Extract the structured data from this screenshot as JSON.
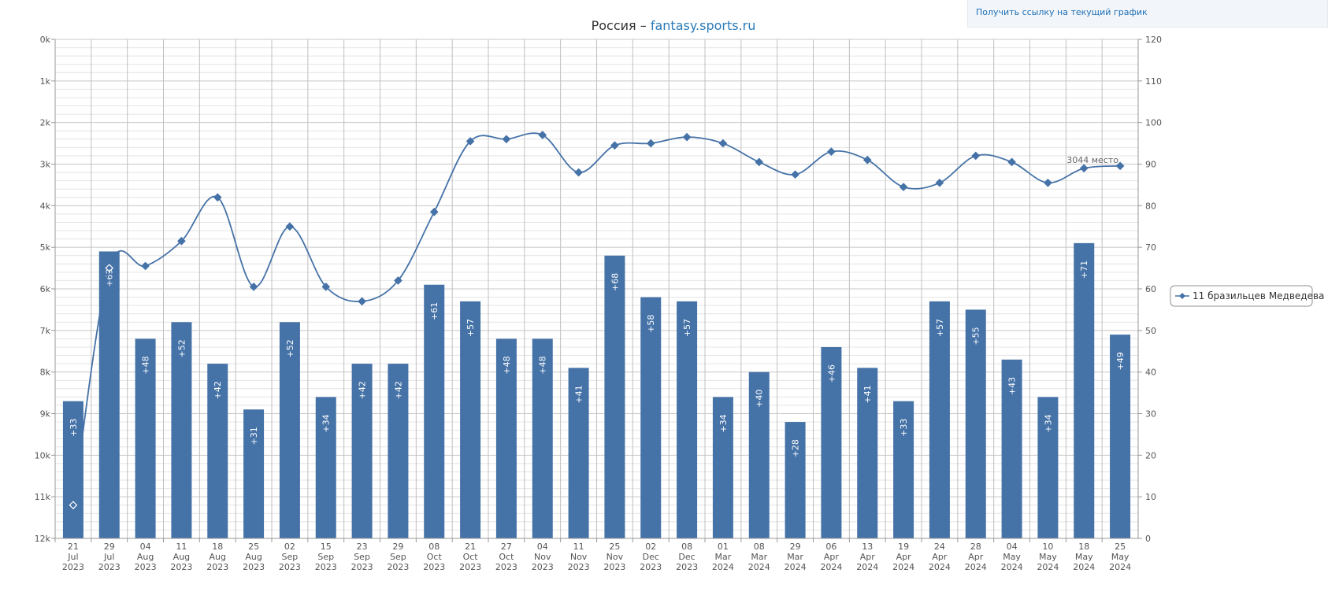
{
  "header": {
    "title_prefix": "Россия – ",
    "title_site": "fantasy.sports.ru",
    "link_text": "Получить ссылку на текущий график"
  },
  "colors": {
    "bar": "#4572a7",
    "line": "#4572a7",
    "title_link": "#2a7ab8"
  },
  "chart_data": {
    "type": "bar+line",
    "title": "Россия – fantasy.sports.ru",
    "categories": [
      [
        "21",
        "Jul",
        "2023"
      ],
      [
        "29",
        "Jul",
        "2023"
      ],
      [
        "04",
        "Aug",
        "2023"
      ],
      [
        "11",
        "Aug",
        "2023"
      ],
      [
        "18",
        "Aug",
        "2023"
      ],
      [
        "25",
        "Aug",
        "2023"
      ],
      [
        "02",
        "Sep",
        "2023"
      ],
      [
        "15",
        "Sep",
        "2023"
      ],
      [
        "23",
        "Sep",
        "2023"
      ],
      [
        "29",
        "Sep",
        "2023"
      ],
      [
        "08",
        "Oct",
        "2023"
      ],
      [
        "21",
        "Oct",
        "2023"
      ],
      [
        "27",
        "Oct",
        "2023"
      ],
      [
        "04",
        "Nov",
        "2023"
      ],
      [
        "11",
        "Nov",
        "2023"
      ],
      [
        "25",
        "Nov",
        "2023"
      ],
      [
        "02",
        "Dec",
        "2023"
      ],
      [
        "08",
        "Dec",
        "2023"
      ],
      [
        "01",
        "Mar",
        "2024"
      ],
      [
        "08",
        "Mar",
        "2024"
      ],
      [
        "29",
        "Mar",
        "2024"
      ],
      [
        "06",
        "Apr",
        "2024"
      ],
      [
        "13",
        "Apr",
        "2024"
      ],
      [
        "19",
        "Apr",
        "2024"
      ],
      [
        "24",
        "Apr",
        "2024"
      ],
      [
        "28",
        "Apr",
        "2024"
      ],
      [
        "04",
        "May",
        "2024"
      ],
      [
        "10",
        "May",
        "2024"
      ],
      [
        "18",
        "May",
        "2024"
      ],
      [
        "25",
        "May",
        "2024"
      ]
    ],
    "bars": {
      "values": [
        33,
        69,
        48,
        52,
        42,
        31,
        52,
        34,
        42,
        42,
        61,
        57,
        48,
        48,
        41,
        68,
        58,
        57,
        34,
        40,
        28,
        46,
        41,
        33,
        57,
        55,
        43,
        34,
        71,
        49
      ],
      "labels": [
        "+33",
        "+69",
        "+48",
        "+52",
        "+42",
        "+31",
        "+52",
        "+34",
        "+42",
        "+42",
        "+61",
        "+57",
        "+48",
        "+48",
        "+41",
        "+68",
        "+58",
        "+57",
        "+34",
        "+40",
        "+28",
        "+46",
        "+41",
        "+33",
        "+57",
        "+55",
        "+43",
        "+34",
        "+71",
        "+49"
      ],
      "axis": {
        "side": "right",
        "min": 0,
        "max": 120,
        "ticks": [
          "0",
          "10",
          "20",
          "30",
          "40",
          "50",
          "60",
          "70",
          "80",
          "90",
          "100",
          "110",
          "120"
        ]
      }
    },
    "line": {
      "name": "11 бразильцев Медведева",
      "values": [
        11200,
        5500,
        5450,
        4850,
        3800,
        5950,
        4500,
        5950,
        6300,
        5800,
        4150,
        2450,
        2400,
        2300,
        3200,
        2550,
        2500,
        2350,
        2500,
        2950,
        3250,
        2700,
        2900,
        3550,
        3450,
        2800,
        2950,
        3450,
        3100,
        3044
      ],
      "annotation": "3044 место",
      "axis": {
        "side": "left",
        "reversed": true,
        "min": 0,
        "max": 12000,
        "ticks": [
          "0k",
          "1k",
          "2k",
          "3k",
          "4k",
          "5k",
          "6k",
          "7k",
          "8k",
          "9k",
          "10k",
          "11k",
          "12k"
        ]
      }
    },
    "legend": {
      "position": "right",
      "entries": [
        "11 бразильцев Медведева"
      ]
    },
    "grid": true
  }
}
